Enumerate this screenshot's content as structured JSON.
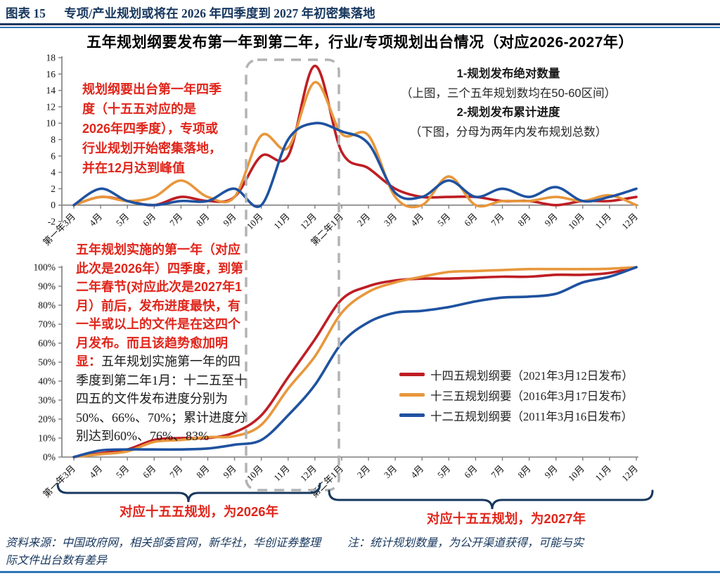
{
  "header": {
    "figure_label": "图表 15",
    "title": "专项/产业规划或将在 2026 年四季度到 2027 年初密集落地"
  },
  "chart_title": "五年规划纲要发布第一年到第二年，行业/专项规划出台情况（对应2026-2027年）",
  "annotations": {
    "top_left": "规划纲要出台第一年四季度（十五五对应的是2026年四季度），专项或行业规划开始密集落地，并在12月达到峰值",
    "top_right_lines": [
      {
        "text": "1-规划发布绝对数量",
        "bold": true
      },
      {
        "text": "（上图，三个五年规划数均在50-60区间）",
        "bold": false
      },
      {
        "text": "2-规划发布累计进度",
        "bold": true
      },
      {
        "text": "（下图，分母为两年内发布规划总数）",
        "bold": false
      }
    ],
    "bottom_left_red": "五年规划实施的第一年（对应此次是2026年）四季度，到第二年春节(对应此次是2027年1月）前后，发布进度最快，有一半或以上的文件是在这四个月发布。而且该趋势愈加明显：",
    "bottom_left_black": "五年规划实施第一年的四季度到第二年1月：十二五至十四五的文件发布进度分别为50%、66%、70%；累计进度分别达到60%、76%、83%",
    "brace_left_label": "对应十五五规划，为2026年",
    "brace_right_label": "对应十五五规划，为2027年"
  },
  "legend": [
    {
      "label": "十四五规划纲要（2021年3月12日发布）",
      "color": "#BE1E24"
    },
    {
      "label": "十三五规划纲要（2016年3月17日发布）",
      "color": "#E8973C"
    },
    {
      "label": "十二五规划纲要（2011年3月16日发布）",
      "color": "#1F52A0"
    }
  ],
  "footer": {
    "source": "资料来源：中国政府网，相关部委官网，新华社，华创证券整理",
    "note": "注：统计规划数量，为公开渠道获得，可能与实",
    "note_wrap": "际文件出台数有差异"
  },
  "colors": {
    "navy": "#17375E",
    "divider_blue": "#2E75B6",
    "series_red": "#BE1E24",
    "series_orange": "#E8973C",
    "series_blue": "#1F52A0",
    "annotation_red": "#E0251B",
    "dashed_box_gray": "#B3B3B3",
    "axis_gray": "#7F7F7F"
  },
  "chart_data": [
    {
      "type": "line",
      "title": "规划发布绝对数量（上图）",
      "xlabel": "",
      "ylabel": "",
      "ylim": [
        -2,
        18
      ],
      "ytick_step": 2,
      "ytick_suffix": "",
      "x_axis_at": 0,
      "grid": false,
      "x_labels": [
        "第一年3月",
        "4月",
        "5月",
        "6月",
        "7月",
        "8月",
        "9月",
        "10月",
        "11月",
        "12月",
        "第二年1月",
        "2月",
        "3月",
        "4月",
        "5月",
        "6月",
        "7月",
        "8月",
        "9月",
        "10月",
        "11月",
        "12月"
      ],
      "series": [
        {
          "name": "十四五规划纲要（2021年3月12日发布）",
          "color": "#BE1E24",
          "values": [
            0,
            1,
            0.5,
            0,
            1,
            0.5,
            1,
            6,
            6,
            17,
            6.5,
            4.5,
            2,
            1,
            1,
            1,
            0.5,
            0.5,
            0,
            0.5,
            0.5,
            1
          ]
        },
        {
          "name": "十三五规划纲要（2016年3月17日发布）",
          "color": "#E8973C",
          "values": [
            0,
            1,
            0.5,
            1,
            3,
            1,
            1,
            8.5,
            7,
            15,
            8.7,
            8.5,
            1,
            0,
            3.5,
            0,
            0.5,
            0.5,
            1,
            0.5,
            1.2,
            0
          ]
        },
        {
          "name": "十二五规划纲要（2011年3月16日发布）",
          "color": "#1F52A0",
          "values": [
            0,
            2,
            0.5,
            0,
            0.5,
            0.5,
            2,
            0,
            8,
            10,
            9,
            7.5,
            1.5,
            1,
            3,
            1,
            2,
            1,
            2.2,
            0.5,
            1,
            2
          ]
        }
      ]
    },
    {
      "type": "line",
      "title": "规划发布累计进度（下图）",
      "xlabel": "",
      "ylabel": "",
      "ylim": [
        0,
        100
      ],
      "ytick_step": 10,
      "ytick_suffix": "%",
      "x_axis_at": 0,
      "grid": false,
      "legend_position": "inside-right",
      "x_labels": [
        "第一年3月",
        "4月",
        "5月",
        "6月",
        "7月",
        "8月",
        "9月",
        "10月",
        "11月",
        "12月",
        "第二年1月",
        "2月",
        "3月",
        "4月",
        "5月",
        "6月",
        "7月",
        "8月",
        "9月",
        "10月",
        "11月",
        "12月"
      ],
      "series": [
        {
          "name": "十四五规划纲要（2021年3月12日发布）",
          "color": "#BE1E24",
          "values": [
            0,
            2,
            4,
            9,
            10,
            10,
            13,
            22,
            42,
            62,
            83,
            90,
            93,
            94,
            94,
            94.5,
            95,
            95,
            96,
            96,
            97,
            100
          ]
        },
        {
          "name": "十三五规划纲要（2016年3月17日发布）",
          "color": "#E8973C",
          "values": [
            0,
            1.5,
            3,
            8,
            9,
            10.5,
            11,
            17,
            36,
            53,
            76,
            87,
            92,
            95,
            97.5,
            98,
            98.5,
            99,
            99,
            99,
            99.2,
            100
          ]
        },
        {
          "name": "十二五规划纲要（2011年3月16日发布）",
          "color": "#1F52A0",
          "values": [
            0,
            3.5,
            4,
            4,
            4,
            4.5,
            6.5,
            9,
            22,
            38,
            60,
            71,
            76,
            77,
            79,
            82,
            84,
            84.5,
            86,
            92,
            95,
            100
          ]
        }
      ]
    }
  ]
}
